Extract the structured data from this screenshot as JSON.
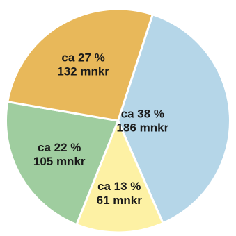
{
  "chart_data": {
    "type": "pie",
    "slices": [
      {
        "percent_label": "ca 38 %",
        "value_label": "186 mnkr",
        "value": 186,
        "color": "#b5d6e8"
      },
      {
        "percent_label": "ca 13 %",
        "value_label": "61 mnkr",
        "value": 61,
        "color": "#fdf1a4"
      },
      {
        "percent_label": "ca 22 %",
        "value_label": "105 mnkr",
        "value": 105,
        "color": "#9fcd9f"
      },
      {
        "percent_label": "ca 27 %",
        "value_label": "132 mnkr",
        "value": 132,
        "color": "#e8b85a"
      }
    ],
    "units": "mnkr",
    "title": "",
    "legend": false
  }
}
